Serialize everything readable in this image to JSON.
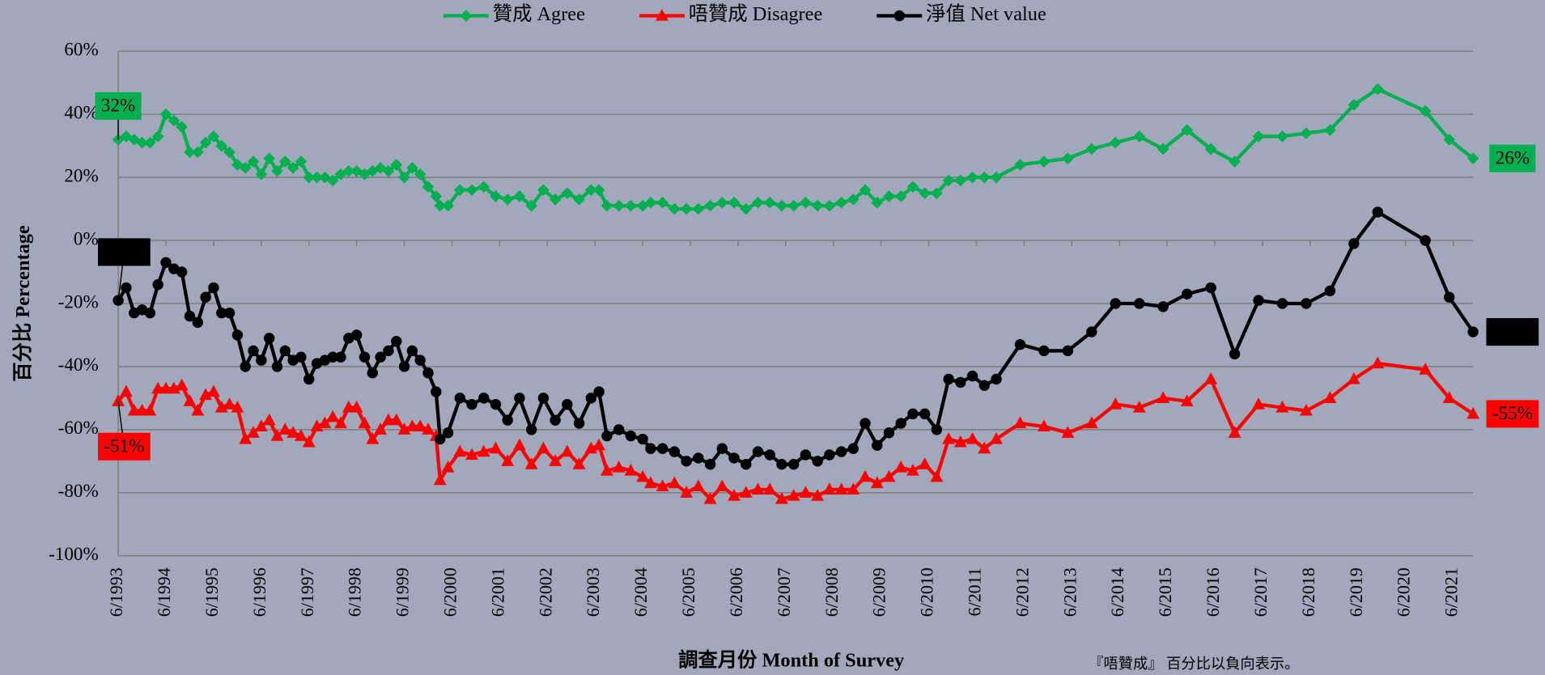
{
  "chart_data": {
    "type": "line",
    "x_title": "調查月份 Month of Survey",
    "y_title": "百分比 Percentage",
    "note": "『唔贊成』 百分比以負向表示。",
    "legend": "top",
    "grid": true,
    "xlim": [
      "6/1993",
      "11/2021"
    ],
    "xticks": [
      "6/1993",
      "6/1994",
      "6/1995",
      "6/1996",
      "6/1997",
      "6/1998",
      "6/1999",
      "6/2000",
      "6/2001",
      "6/2002",
      "6/2003",
      "6/2004",
      "6/2005",
      "6/2006",
      "6/2007",
      "6/2008",
      "6/2009",
      "6/2010",
      "6/2011",
      "6/2012",
      "6/2013",
      "6/2014",
      "6/2015",
      "6/2016",
      "6/2017",
      "6/2018",
      "6/2019",
      "6/2020",
      "6/2021"
    ],
    "ylim": [
      -100,
      60
    ],
    "yticks": [
      {
        "value": 60,
        "label": "60%"
      },
      {
        "value": 40,
        "label": "40%"
      },
      {
        "value": 20,
        "label": "20%"
      },
      {
        "value": 0,
        "label": "0%"
      },
      {
        "value": -20,
        "label": "-20%"
      },
      {
        "value": -40,
        "label": "-40%"
      },
      {
        "value": -60,
        "label": "-60%"
      },
      {
        "value": -80,
        "label": "-80%"
      },
      {
        "value": -100,
        "label": "-100%"
      }
    ],
    "x": [
      "6/1993",
      "8/1993",
      "10/1993",
      "12/1993",
      "2/1994",
      "4/1994",
      "6/1994",
      "8/1994",
      "10/1994",
      "12/1994",
      "2/1995",
      "4/1995",
      "6/1995",
      "8/1995",
      "10/1995",
      "12/1995",
      "2/1996",
      "4/1996",
      "6/1996",
      "8/1996",
      "10/1996",
      "12/1996",
      "2/1997",
      "4/1997",
      "6/1997",
      "8/1997",
      "10/1997",
      "12/1997",
      "2/1998",
      "4/1998",
      "6/1998",
      "8/1998",
      "10/1998",
      "12/1998",
      "2/1999",
      "4/1999",
      "6/1999",
      "8/1999",
      "10/1999",
      "12/1999",
      "2/2000",
      "3/2000",
      "5/2000",
      "8/2000",
      "11/2000",
      "2/2001",
      "5/2001",
      "8/2001",
      "11/2001",
      "2/2002",
      "5/2002",
      "8/2002",
      "11/2002",
      "2/2003",
      "5/2003",
      "7/2003",
      "9/2003",
      "12/2003",
      "3/2004",
      "6/2004",
      "8/2004",
      "11/2004",
      "2/2005",
      "5/2005",
      "8/2005",
      "11/2005",
      "2/2006",
      "5/2006",
      "8/2006",
      "11/2006",
      "2/2007",
      "5/2007",
      "8/2007",
      "11/2007",
      "2/2008",
      "5/2008",
      "8/2008",
      "11/2008",
      "2/2009",
      "5/2009",
      "8/2009",
      "11/2009",
      "2/2010",
      "5/2010",
      "8/2010",
      "11/2010",
      "2/2011",
      "5/2011",
      "8/2011",
      "11/2011",
      "5/2012",
      "11/2012",
      "5/2013",
      "11/2013",
      "5/2014",
      "11/2014",
      "5/2015",
      "11/2015",
      "5/2016",
      "11/2016",
      "5/2017",
      "11/2017",
      "5/2018",
      "11/2018",
      "5/2019",
      "11/2019",
      "11/2020",
      "5/2021",
      "11/2021"
    ],
    "series": [
      {
        "name": "贊成 Agree",
        "color": "#00b050",
        "marker": "diamond",
        "values": [
          32,
          33,
          32,
          31,
          31,
          33,
          40,
          38,
          36,
          28,
          28,
          31,
          33,
          30,
          28,
          24,
          23,
          25,
          21,
          26,
          22,
          25,
          23,
          25,
          20,
          20,
          20,
          19,
          21,
          22,
          22,
          21,
          22,
          23,
          22,
          24,
          20,
          23,
          21,
          17,
          14,
          11,
          11,
          16,
          16,
          17,
          14,
          13,
          14,
          11,
          16,
          13,
          15,
          13,
          16,
          16,
          11,
          11,
          11,
          11,
          12,
          12,
          10,
          10,
          10,
          11,
          12,
          12,
          10,
          12,
          12,
          11,
          11,
          12,
          11,
          11,
          12,
          13,
          16,
          12,
          14,
          14,
          17,
          15,
          15,
          19,
          19,
          20,
          20,
          20,
          24,
          25,
          26,
          29,
          31,
          33,
          29,
          35,
          29,
          25,
          33,
          33,
          34,
          35,
          43,
          48,
          41,
          32,
          26
        ],
        "value_labels": [
          "32%",
          null,
          null,
          null,
          null,
          null,
          null,
          null,
          null,
          null,
          null,
          null,
          null,
          null,
          null,
          null,
          null,
          null,
          null,
          null,
          null,
          null,
          null,
          null,
          null,
          null,
          null,
          null,
          null,
          null,
          null,
          null,
          null,
          null,
          null,
          null,
          null,
          null,
          null,
          null,
          null,
          null,
          null,
          null,
          null,
          null,
          null,
          null,
          null,
          null,
          null,
          null,
          null,
          null,
          null,
          null,
          null,
          null,
          null,
          null,
          null,
          null,
          null,
          null,
          null,
          null,
          null,
          null,
          null,
          null,
          null,
          null,
          null,
          null,
          null,
          null,
          null,
          null,
          null,
          null,
          null,
          null,
          null,
          null,
          null,
          null,
          null,
          null,
          null,
          null,
          null,
          null,
          null,
          null,
          null,
          null,
          null,
          null,
          null,
          null,
          null,
          null,
          null,
          null,
          null,
          null,
          null,
          null,
          "26%"
        ]
      },
      {
        "name": "唔贊成 Disagree",
        "color": "#ff0000",
        "marker": "triangle",
        "values": [
          -51,
          -48,
          -54,
          -54,
          -54,
          -47,
          -47,
          -47,
          -46,
          -51,
          -54,
          -49,
          -48,
          -53,
          -52,
          -53,
          -63,
          -61,
          -59,
          -57,
          -62,
          -60,
          -61,
          -62,
          -64,
          -59,
          -58,
          -56,
          -58,
          -53,
          -53,
          -58,
          -63,
          -60,
          -57,
          -57,
          -60,
          -59,
          -59,
          -60,
          -62,
          -76,
          -72,
          -67,
          -68,
          -67,
          -66,
          -70,
          -65,
          -71,
          -66,
          -70,
          -67,
          -71,
          -66,
          -65,
          -73,
          -72,
          -73,
          -75,
          -77,
          -78,
          -77,
          -80,
          -78,
          -82,
          -78,
          -81,
          -80,
          -79,
          -79,
          -82,
          -81,
          -80,
          -81,
          -79,
          -79,
          -79,
          -75,
          -77,
          -75,
          -72,
          -73,
          -71,
          -75,
          -63,
          -64,
          -63,
          -66,
          -63,
          -58,
          -59,
          -61,
          -58,
          -52,
          -53,
          -50,
          -51,
          -44,
          -61,
          -52,
          -53,
          -54,
          -50,
          -44,
          -39,
          -41,
          -50,
          -55
        ],
        "value_labels": [
          "-51%",
          null,
          null,
          null,
          null,
          null,
          null,
          null,
          null,
          null,
          null,
          null,
          null,
          null,
          null,
          null,
          null,
          null,
          null,
          null,
          null,
          null,
          null,
          null,
          null,
          null,
          null,
          null,
          null,
          null,
          null,
          null,
          null,
          null,
          null,
          null,
          null,
          null,
          null,
          null,
          null,
          null,
          null,
          null,
          null,
          null,
          null,
          null,
          null,
          null,
          null,
          null,
          null,
          null,
          null,
          null,
          null,
          null,
          null,
          null,
          null,
          null,
          null,
          null,
          null,
          null,
          null,
          null,
          null,
          null,
          null,
          null,
          null,
          null,
          null,
          null,
          null,
          null,
          null,
          null,
          null,
          null,
          null,
          null,
          null,
          null,
          null,
          null,
          null,
          null,
          null,
          null,
          null,
          null,
          null,
          null,
          null,
          null,
          null,
          null,
          null,
          null,
          null,
          null,
          null,
          null,
          null,
          null,
          "-55%"
        ]
      },
      {
        "name": "淨值 Net value",
        "color": "#000000",
        "marker": "circle",
        "values": [
          -19,
          -15,
          -23,
          -22,
          -23,
          -14,
          -7,
          -9,
          -10,
          -24,
          -26,
          -18,
          -15,
          -23,
          -23,
          -30,
          -40,
          -35,
          -38,
          -31,
          -40,
          -35,
          -38,
          -37,
          -44,
          -39,
          -38,
          -37,
          -37,
          -31,
          -30,
          -37,
          -42,
          -37,
          -35,
          -32,
          -40,
          -35,
          -38,
          -42,
          -48,
          -63,
          -61,
          -50,
          -52,
          -50,
          -52,
          -57,
          -50,
          -60,
          -50,
          -57,
          -52,
          -58,
          -50,
          -48,
          -62,
          -60,
          -62,
          -63,
          -66,
          -66,
          -67,
          -70,
          -69,
          -71,
          -66,
          -69,
          -71,
          -67,
          -68,
          -71,
          -71,
          -68,
          -70,
          -68,
          -67,
          -66,
          -58,
          -65,
          -61,
          -58,
          -55,
          -55,
          -60,
          -44,
          -45,
          -43,
          -46,
          -44,
          -33,
          -35,
          -35,
          -29,
          -20,
          -20,
          -21,
          -17,
          -15,
          -36,
          -19,
          -20,
          -20,
          -16,
          -1,
          9,
          0,
          -18,
          -29
        ],
        "value_labels": [
          "-19%",
          null,
          null,
          null,
          null,
          null,
          null,
          null,
          null,
          null,
          null,
          null,
          null,
          null,
          null,
          null,
          null,
          null,
          null,
          null,
          null,
          null,
          null,
          null,
          null,
          null,
          null,
          null,
          null,
          null,
          null,
          null,
          null,
          null,
          null,
          null,
          null,
          null,
          null,
          null,
          null,
          null,
          null,
          null,
          null,
          null,
          null,
          null,
          null,
          null,
          null,
          null,
          null,
          null,
          null,
          null,
          null,
          null,
          null,
          null,
          null,
          null,
          null,
          null,
          null,
          null,
          null,
          null,
          null,
          null,
          null,
          null,
          null,
          null,
          null,
          null,
          null,
          null,
          null,
          null,
          null,
          null,
          null,
          null,
          null,
          null,
          null,
          null,
          null,
          null,
          null,
          null,
          null,
          null,
          null,
          null,
          null,
          null,
          null,
          null,
          null,
          null,
          null,
          null,
          null,
          null,
          null,
          null,
          "-29%"
        ]
      }
    ]
  }
}
